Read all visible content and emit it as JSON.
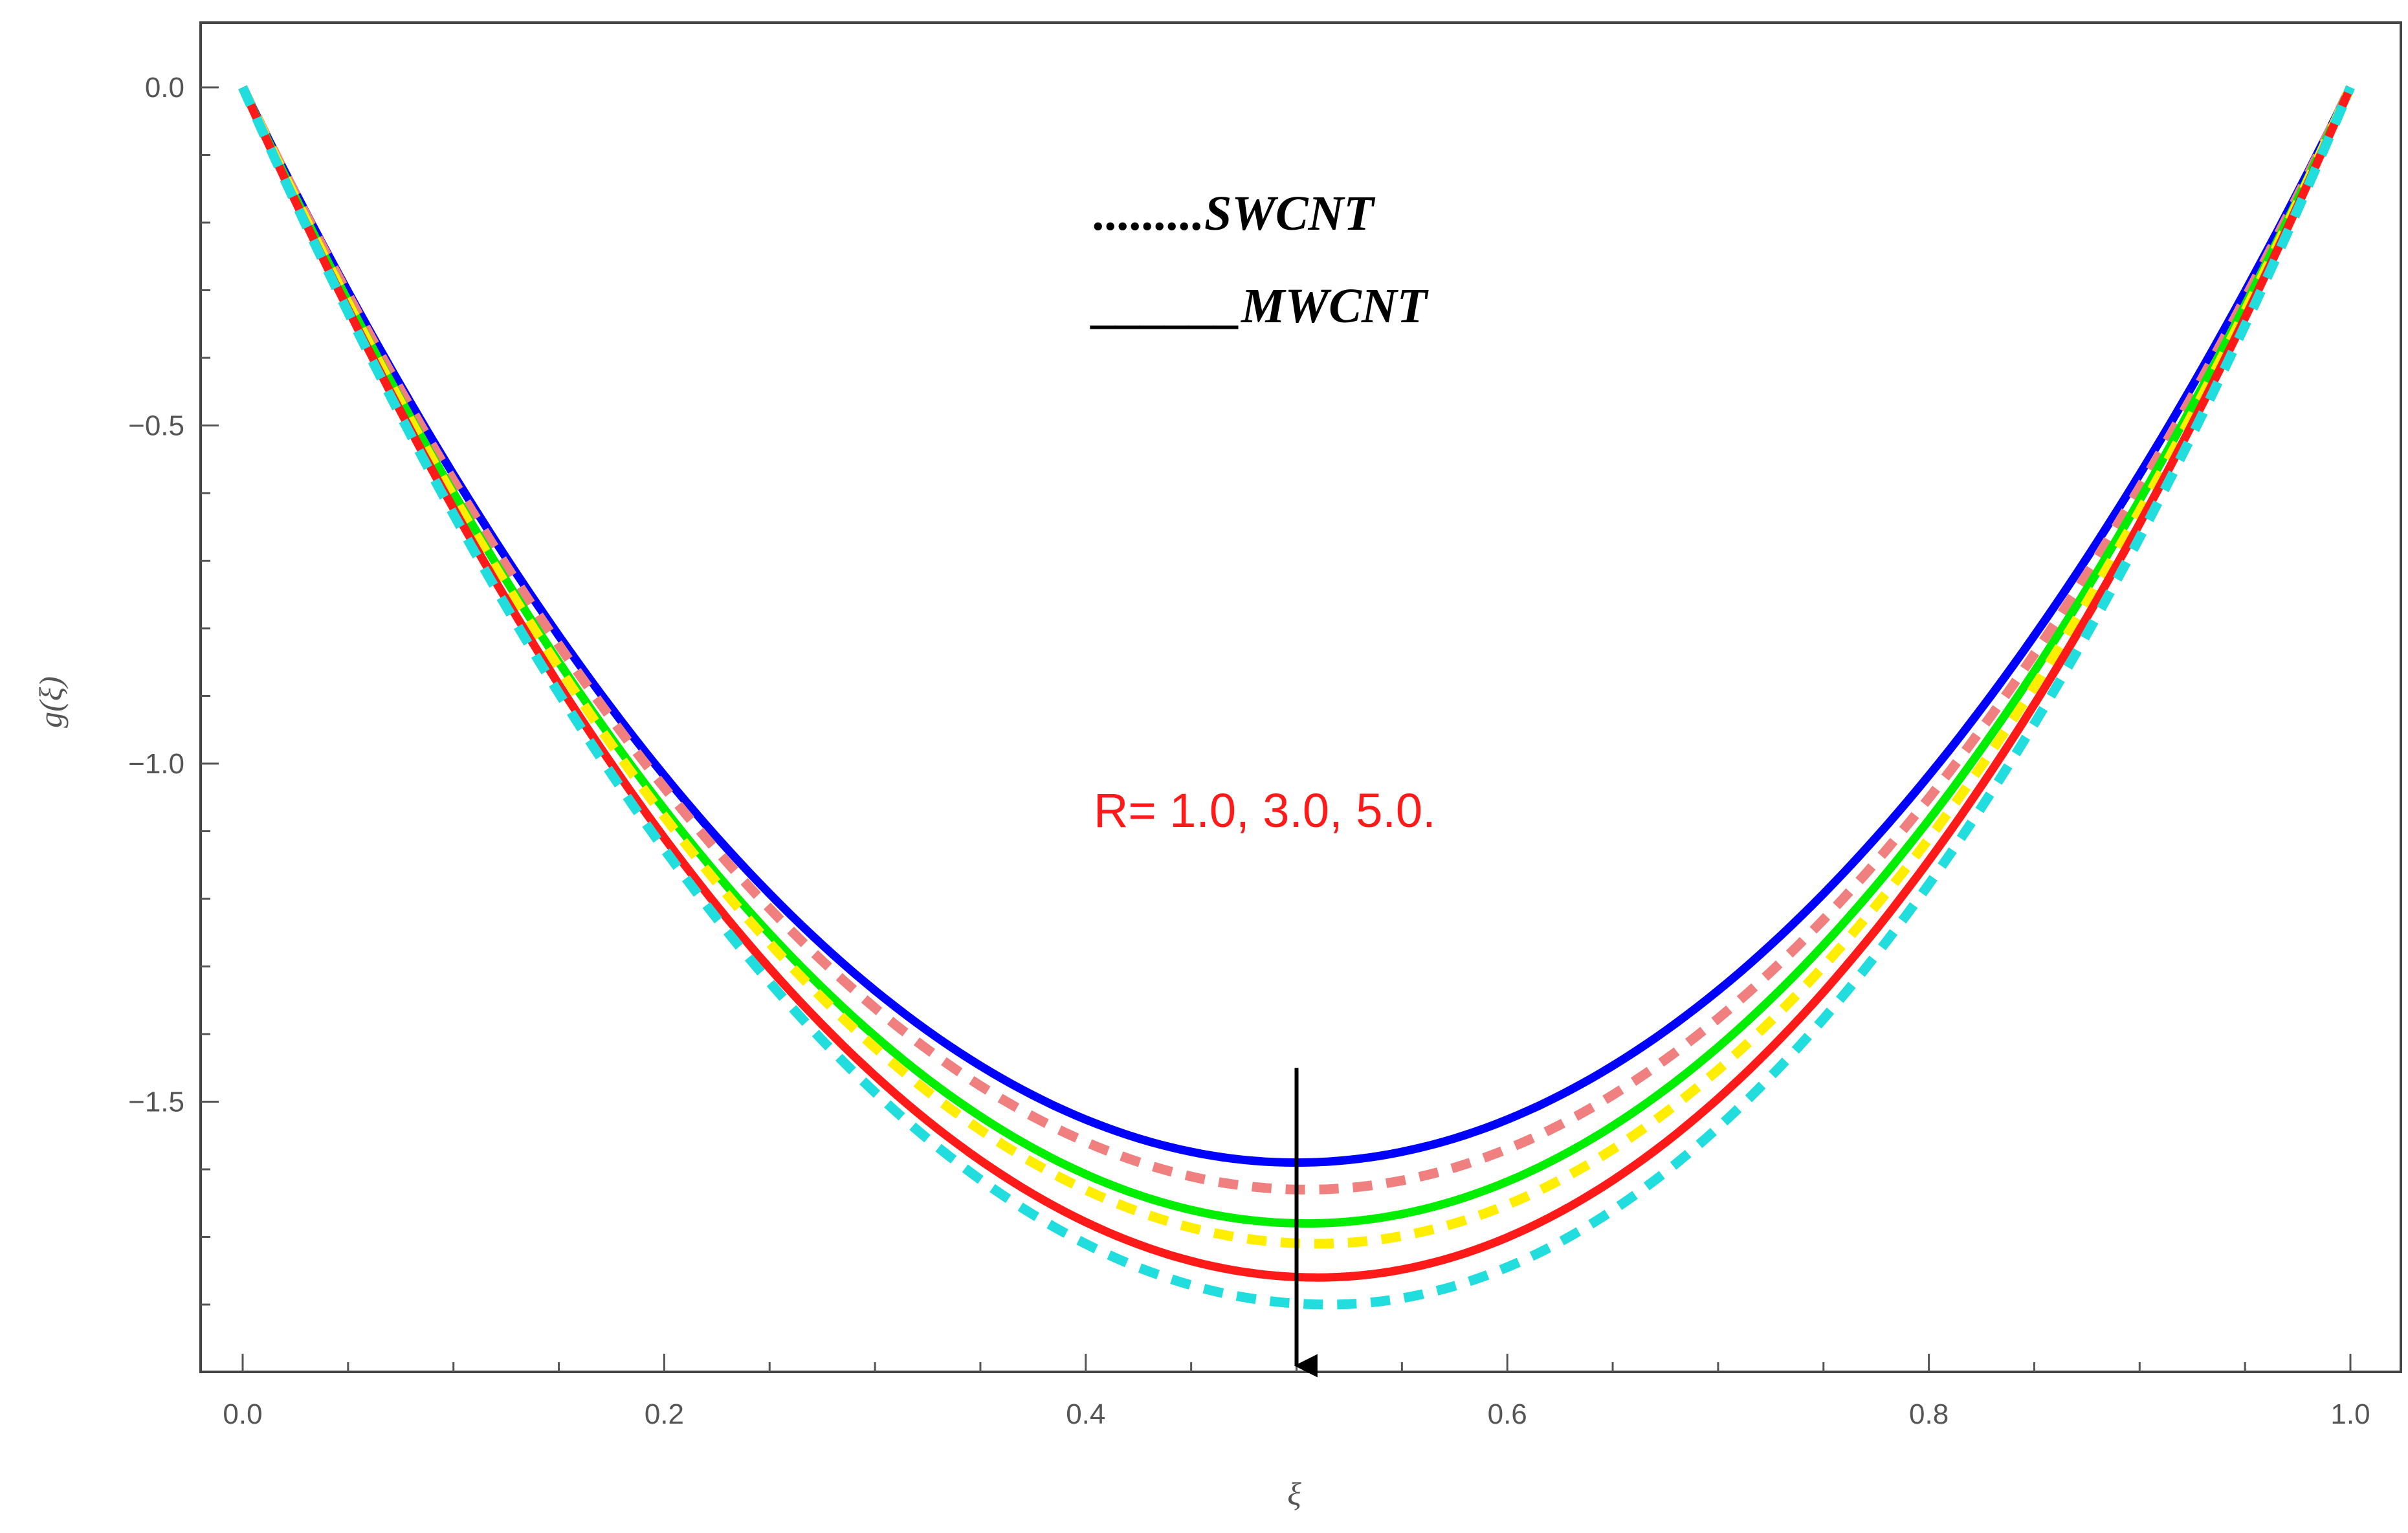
{
  "chart_data": {
    "type": "line",
    "title": "",
    "xlabel": "ξ",
    "ylabel": "g(ξ)",
    "xlim": [
      0.0,
      1.0
    ],
    "ylim": [
      -1.9,
      0.1
    ],
    "xticks": [
      "0.0",
      "0.2",
      "0.4",
      "0.6",
      "0.8",
      "1.0"
    ],
    "yticks": [
      "0.0",
      "-0.5",
      "-1.0",
      "-1.5"
    ],
    "legend": [
      {
        "style": "dotted",
        "marker": ".........",
        "label": "SWCNT"
      },
      {
        "style": "solid",
        "marker": "______",
        "label": "MWCNT"
      }
    ],
    "annotation": {
      "text": "R= 1.0, 3.0, 5.0.",
      "color": "#ff1a1a"
    },
    "arrow": {
      "x": 0.5,
      "y_from": -1.45,
      "y_to": -1.9,
      "direction": "down"
    },
    "series": [
      {
        "name": "MWCNT R=1.0",
        "group": "MWCNT",
        "style": "solid",
        "color": "#0000ff",
        "min_value": -1.59,
        "min_at": 0.5
      },
      {
        "name": "SWCNT R=1.0",
        "group": "SWCNT",
        "style": "dashed",
        "color": "#f08080",
        "min_value": -1.63,
        "min_at": 0.505
      },
      {
        "name": "MWCNT R=3.0",
        "group": "MWCNT",
        "style": "solid",
        "color": "#00ee00",
        "min_value": -1.68,
        "min_at": 0.505
      },
      {
        "name": "SWCNT R=3.0",
        "group": "SWCNT",
        "style": "dashed",
        "color": "#ffee00",
        "min_value": -1.71,
        "min_at": 0.51
      },
      {
        "name": "MWCNT R=5.0",
        "group": "MWCNT",
        "style": "solid",
        "color": "#ff1a1a",
        "min_value": -1.76,
        "min_at": 0.51
      },
      {
        "name": "SWCNT R=5.0",
        "group": "SWCNT",
        "style": "dashed",
        "color": "#22dddd",
        "min_value": -1.8,
        "min_at": 0.515
      }
    ]
  }
}
